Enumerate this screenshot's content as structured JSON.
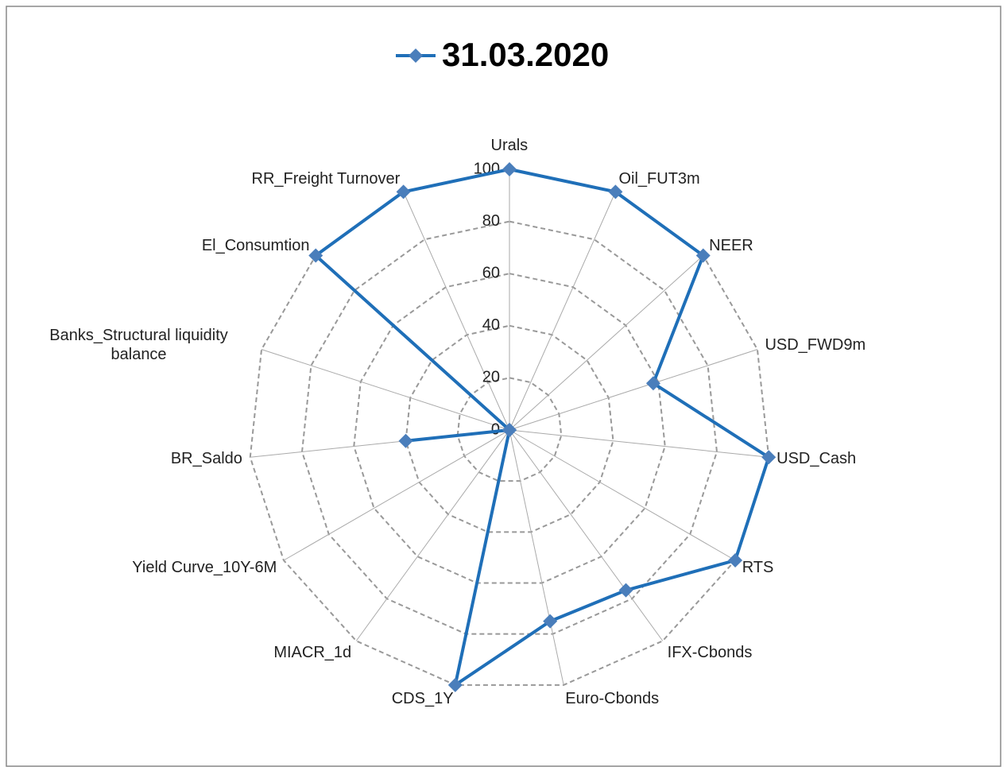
{
  "chart_data": {
    "type": "radar",
    "categories": [
      "Urals",
      "Oil_FUT3m",
      "NEER",
      "USD_FWD9m",
      "USD_Cash",
      "RTS",
      "IFX-Cbonds",
      "Euro-Cbonds",
      "CDS_1Y",
      "MIACR_1d",
      "Yield Curve_10Y-6M",
      "BR_Saldo",
      "Banks_Structural liquidity balance",
      "El_Consumtion",
      "RR_Freight Turnover"
    ],
    "series": [
      {
        "name": "31.03.2020",
        "color": "#1f6fb8",
        "values": [
          100,
          100,
          100,
          58,
          100,
          100,
          76,
          75,
          100,
          0,
          0,
          40,
          0,
          100,
          100
        ]
      }
    ],
    "ylim": [
      0,
      100
    ],
    "yticks": [
      0,
      20,
      40,
      60,
      80,
      100
    ],
    "grid": true,
    "legend": "top"
  }
}
